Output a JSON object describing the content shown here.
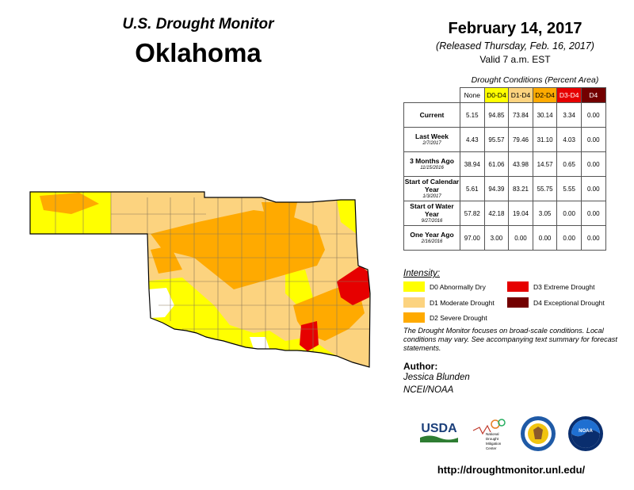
{
  "header": {
    "agency": "U.S. Drought Monitor",
    "state": "Oklahoma",
    "date": "February 14, 2017",
    "released": "(Released Thursday, Feb. 16, 2017)",
    "valid": "Valid 7 a.m. EST"
  },
  "table": {
    "caption": "Drought Conditions (Percent Area)",
    "columns": [
      "None",
      "D0-D4",
      "D1-D4",
      "D2-D4",
      "D3-D4",
      "D4"
    ],
    "rows": [
      {
        "label": "Current",
        "sub": "",
        "values": [
          "5.15",
          "94.85",
          "73.84",
          "30.14",
          "3.34",
          "0.00"
        ]
      },
      {
        "label": "Last Week",
        "sub": "2/7/2017",
        "values": [
          "4.43",
          "95.57",
          "79.46",
          "31.10",
          "4.03",
          "0.00"
        ]
      },
      {
        "label": "3 Months Ago",
        "sub": "11/15/2016",
        "values": [
          "38.94",
          "61.06",
          "43.98",
          "14.57",
          "0.65",
          "0.00"
        ]
      },
      {
        "label": "Start of Calendar Year",
        "sub": "1/3/2017",
        "values": [
          "5.61",
          "94.39",
          "83.21",
          "55.75",
          "5.55",
          "0.00"
        ]
      },
      {
        "label": "Start of Water Year",
        "sub": "9/27/2016",
        "values": [
          "57.82",
          "42.18",
          "19.04",
          "3.05",
          "0.00",
          "0.00"
        ]
      },
      {
        "label": "One Year Ago",
        "sub": "2/16/2016",
        "values": [
          "97.00",
          "3.00",
          "0.00",
          "0.00",
          "0.00",
          "0.00"
        ]
      }
    ]
  },
  "legend": {
    "title": "Intensity:",
    "items": [
      {
        "code": "D0",
        "label": "D0 Abnormally Dry",
        "color": "#ffff00"
      },
      {
        "code": "D1",
        "label": "D1 Moderate Drought",
        "color": "#fcd37f"
      },
      {
        "code": "D2",
        "label": "D2 Severe Drought",
        "color": "#ffaa00"
      },
      {
        "code": "D3",
        "label": "D3 Extreme Drought",
        "color": "#e60000"
      },
      {
        "code": "D4",
        "label": "D4 Exceptional Drought",
        "color": "#730000"
      }
    ]
  },
  "disclaimer": "The Drought Monitor focuses on broad-scale conditions. Local conditions may vary. See accompanying text summary for forecast statements.",
  "author": {
    "label": "Author:",
    "name": "Jessica Blunden",
    "org": "NCEI/NOAA"
  },
  "logos": {
    "usda": "USDA",
    "ndmc": [
      "National",
      "Drought",
      "Mitigation",
      "Center"
    ],
    "noaa": "NOAA"
  },
  "url": "http://droughtmonitor.unl.edu/"
}
